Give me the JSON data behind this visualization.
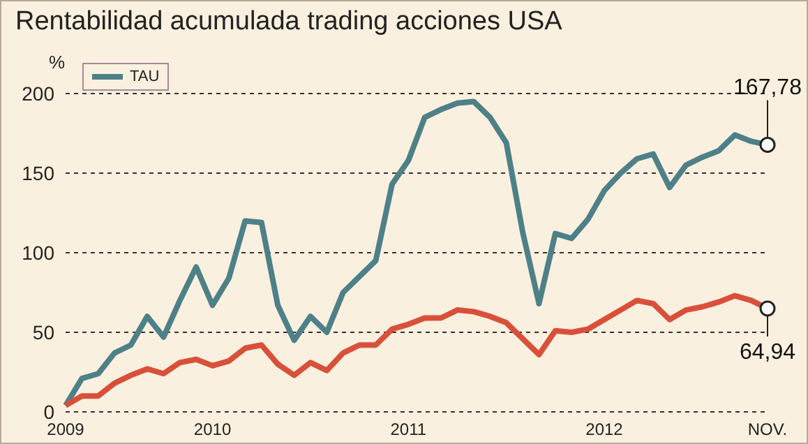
{
  "chart_data": {
    "type": "line",
    "title": "Rentabilidad acumulada trading acciones USA",
    "ylabel": "%",
    "categories": [
      "2009",
      null,
      null,
      null,
      null,
      null,
      null,
      null,
      null,
      "2010",
      null,
      null,
      null,
      null,
      null,
      null,
      null,
      null,
      null,
      null,
      null,
      "2011",
      null,
      null,
      null,
      null,
      null,
      null,
      null,
      null,
      null,
      null,
      null,
      "2012",
      null,
      null,
      null,
      null,
      null,
      null,
      null,
      null,
      null,
      "NOV."
    ],
    "series": [
      {
        "name": "TAU",
        "color": "#4e8088",
        "values": [
          4,
          21,
          24,
          37,
          42,
          60,
          47,
          70,
          91,
          67,
          84,
          120,
          119,
          67,
          45,
          60,
          50,
          75,
          85,
          95,
          143,
          158,
          185,
          190,
          194,
          195,
          185,
          169,
          113,
          68,
          112,
          109,
          121,
          139,
          150,
          159,
          162,
          141,
          155,
          160,
          164,
          174,
          170,
          167.78
        ]
      },
      {
        "color": "#d9503a",
        "values": [
          4,
          10,
          10,
          18,
          23,
          27,
          24,
          31,
          33,
          29,
          32,
          40,
          42,
          30,
          23,
          31,
          26,
          37,
          42,
          42,
          52,
          55,
          59,
          59,
          64,
          63,
          60,
          56,
          46,
          36,
          51,
          50,
          52,
          58,
          64,
          70,
          68,
          58,
          64,
          66,
          69,
          73,
          70,
          64.94
        ]
      }
    ],
    "ylim": [
      0,
      200
    ],
    "yticks": [
      0,
      50,
      100,
      150,
      200
    ],
    "grid": "y",
    "legend": "top left",
    "marker": "none",
    "line_style": "solid",
    "annotations": [
      {
        "text": "167,78",
        "x": "NOV.",
        "y": 167.78
      },
      {
        "text": "64,94",
        "x": "NOV.",
        "y": 64.94
      }
    ]
  }
}
